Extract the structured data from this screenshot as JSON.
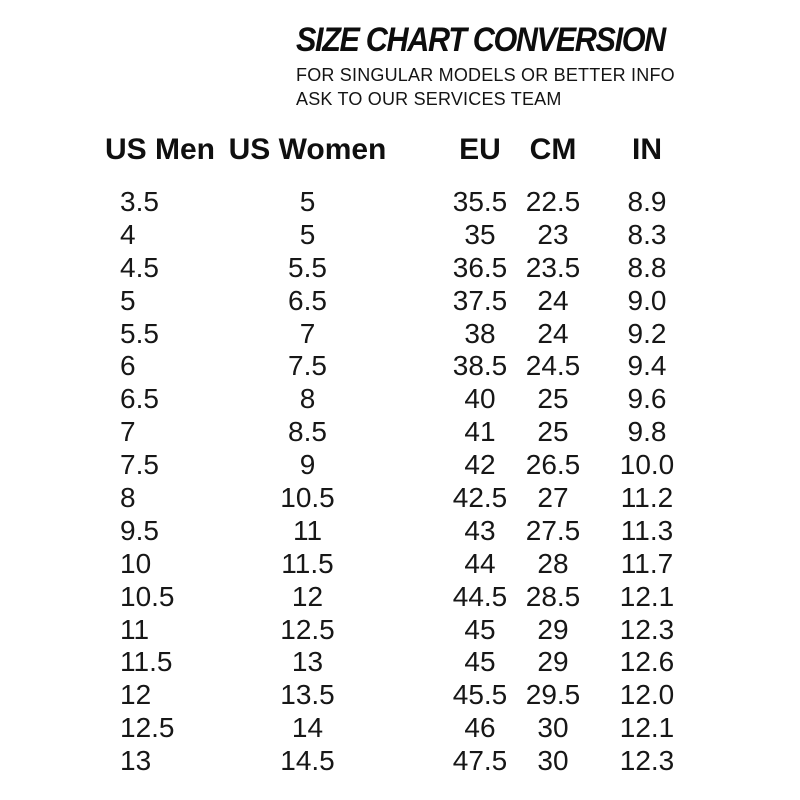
{
  "header": {
    "title": "SIZE CHART CONVERSION",
    "subtitle_line1": "FOR SINGULAR MODELS OR BETTER INFO",
    "subtitle_line2": "ASK TO OUR SERVICES TEAM"
  },
  "colors": {
    "background": "#ffffff",
    "text": "#141414"
  },
  "chart_data": {
    "type": "table",
    "title": "SIZE CHART CONVERSION",
    "headers": [
      "US Men",
      "US Women",
      "EU",
      "CM",
      "IN"
    ],
    "rows": [
      [
        "3.5",
        "5",
        "35.5",
        "22.5",
        "8.9"
      ],
      [
        "4",
        "5",
        "35",
        "23",
        "8.3"
      ],
      [
        "4.5",
        "5.5",
        "36.5",
        "23.5",
        "8.8"
      ],
      [
        "5",
        "6.5",
        "37.5",
        "24",
        "9.0"
      ],
      [
        "5.5",
        "7",
        "38",
        "24",
        "9.2"
      ],
      [
        "6",
        "7.5",
        "38.5",
        "24.5",
        "9.4"
      ],
      [
        "6.5",
        "8",
        "40",
        "25",
        "9.6"
      ],
      [
        "7",
        "8.5",
        "41",
        "25",
        "9.8"
      ],
      [
        "7.5",
        "9",
        "42",
        "26.5",
        "10.0"
      ],
      [
        "8",
        "10.5",
        "42.5",
        "27",
        "11.2"
      ],
      [
        "9.5",
        "11",
        "43",
        "27.5",
        "11.3"
      ],
      [
        "10",
        "11.5",
        "44",
        "28",
        "11.7"
      ],
      [
        "10.5",
        "12",
        "44.5",
        "28.5",
        "12.1"
      ],
      [
        "11",
        "12.5",
        "45",
        "29",
        "12.3"
      ],
      [
        "11.5",
        "13",
        "45",
        "29",
        "12.6"
      ],
      [
        "12",
        "13.5",
        "45.5",
        "29.5",
        "12.0"
      ],
      [
        "12.5",
        "14",
        "46",
        "30",
        "12.1"
      ],
      [
        "13",
        "14.5",
        "47.5",
        "30",
        "12.3"
      ]
    ]
  }
}
